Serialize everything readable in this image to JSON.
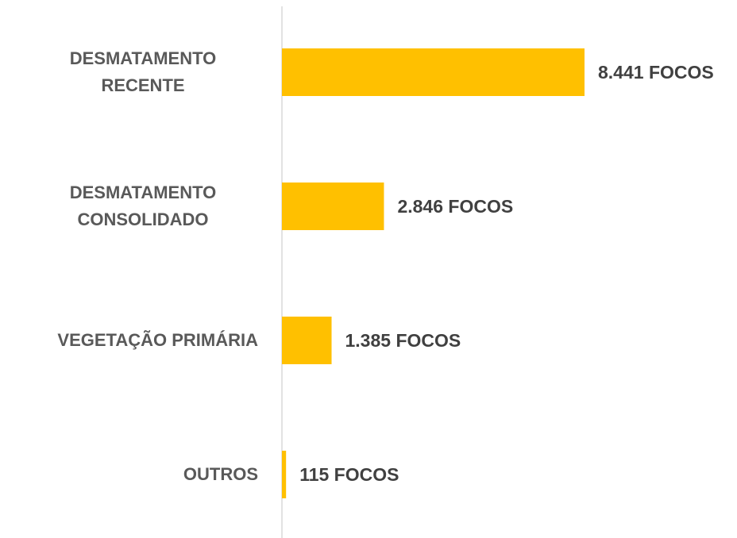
{
  "chart_data": {
    "type": "bar",
    "orientation": "horizontal",
    "categories": [
      "DESMATAMENTO RECENTE",
      "DESMATAMENTO CONSOLIDADO",
      "VEGETAÇÃO PRIMÁRIA",
      "OUTROS"
    ],
    "values": [
      8441,
      2846,
      1385,
      115
    ],
    "value_labels": [
      "8.441 FOCOS",
      "2.846 FOCOS",
      "1.385 FOCOS",
      "115 FOCOS"
    ],
    "color": "#ffc000"
  }
}
